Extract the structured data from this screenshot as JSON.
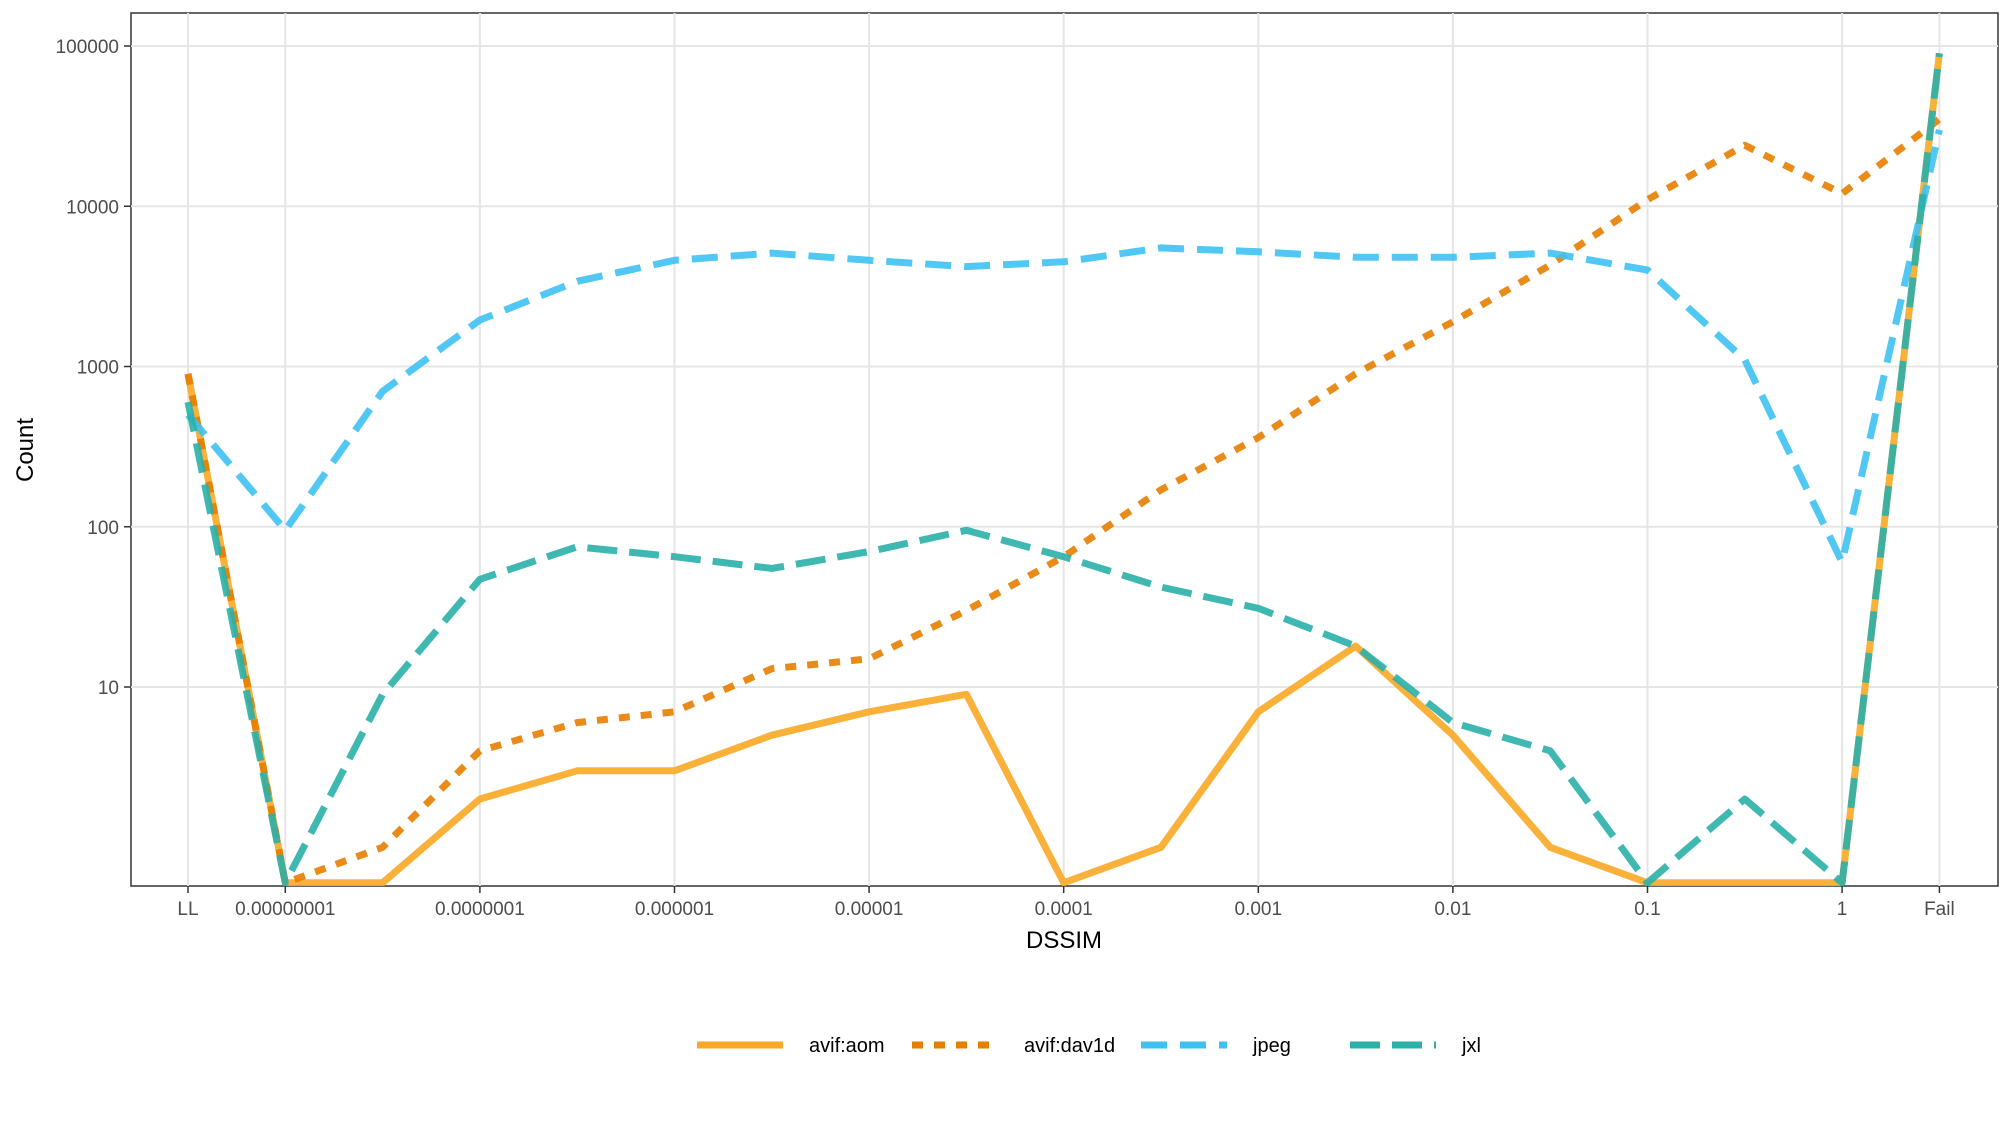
{
  "chart_data": {
    "type": "line",
    "title": "",
    "xlabel": "DSSIM",
    "ylabel": "Count",
    "y_scale": "log",
    "ylim": [
      0.6,
      130000
    ],
    "y_ticks": [
      10,
      100,
      1000,
      10000,
      100000
    ],
    "y_tick_labels": [
      "10",
      "100",
      "1000",
      "10000",
      "100000"
    ],
    "x_tick_labels": [
      "LL",
      "0.00000001",
      "0.0000001",
      "0.000001",
      "0.00001",
      "0.0001",
      "0.001",
      "0.01",
      "0.1",
      "1",
      "Fail"
    ],
    "x_tick_index": [
      0,
      1,
      3,
      5,
      7,
      9,
      11,
      13,
      15,
      17,
      18
    ],
    "x": [
      "LL",
      "0.00000001",
      "0.00000003",
      "0.0000001",
      "0.0000003",
      "0.000001",
      "0.000003",
      "0.00001",
      "0.00003",
      "0.0001",
      "0.0003",
      "0.001",
      "0.003",
      "0.01",
      "0.03",
      "0.1",
      "0.3",
      "1",
      "Fail"
    ],
    "grid": true,
    "legend_position": "bottom",
    "series": [
      {
        "name": "avif:aom",
        "color": "#F9A825",
        "dash": "solid",
        "values": [
          900,
          0.6,
          0.6,
          2,
          3,
          3,
          5,
          7,
          9,
          0.6,
          1,
          7,
          18,
          5,
          1,
          0.6,
          0.6,
          0.6,
          90000
        ]
      },
      {
        "name": "avif:dav1d",
        "color": "#E67E00",
        "dash": "dotted",
        "values": [
          900,
          0.6,
          1,
          4,
          6,
          7,
          13,
          15,
          30,
          65,
          170,
          360,
          900,
          1900,
          4300,
          11000,
          24000,
          12000,
          35000
        ]
      },
      {
        "name": "jpeg",
        "color": "#3EC1F2",
        "dash": "dashed",
        "values": [
          500,
          95,
          700,
          1950,
          3400,
          4600,
          5100,
          4600,
          4200,
          4500,
          5500,
          5200,
          4800,
          4800,
          5100,
          4000,
          1100,
          60,
          30000
        ]
      },
      {
        "name": "jxl",
        "color": "#2BB0AA",
        "dash": "longdash",
        "values": [
          600,
          0.6,
          9,
          47,
          75,
          65,
          55,
          70,
          95,
          65,
          42,
          31,
          18,
          6,
          4,
          0.6,
          2,
          0.6,
          90000
        ]
      }
    ]
  }
}
